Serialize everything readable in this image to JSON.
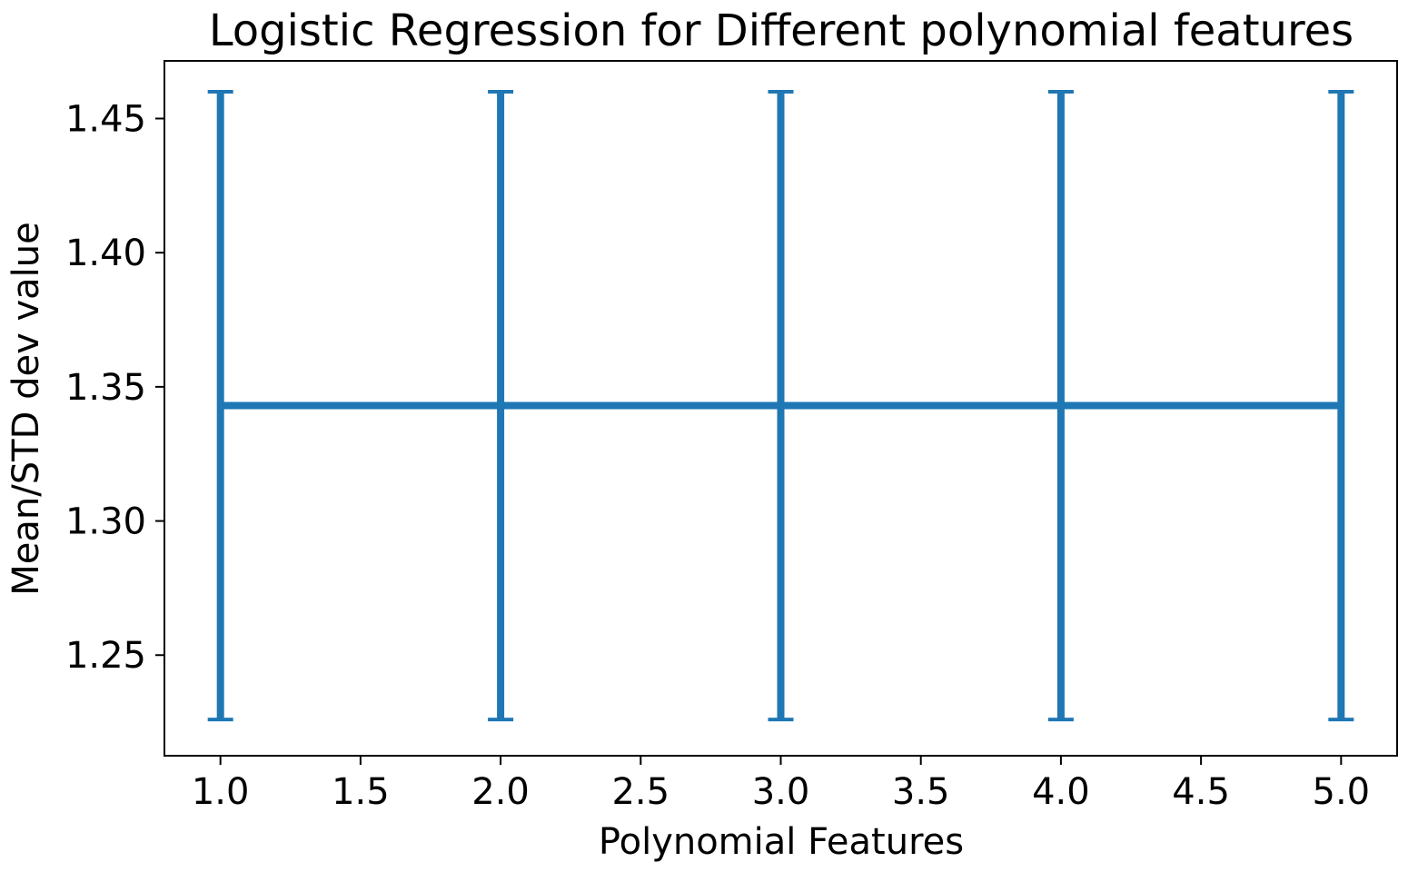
{
  "chart_data": {
    "type": "line",
    "title": "Logistic Regression for Different polynomial features",
    "xlabel": "Polynomial Features",
    "ylabel": "Mean/STD dev value",
    "x": [
      1,
      2,
      3,
      4,
      5
    ],
    "series": [
      {
        "values": [
          1.343,
          1.343,
          1.343,
          1.343,
          1.343
        ],
        "error": [
          0.117,
          0.117,
          0.117,
          0.117,
          0.117
        ],
        "color": "#1f77b4"
      }
    ],
    "xlim": [
      0.8,
      5.2
    ],
    "ylim": [
      1.2125,
      1.4715
    ],
    "xticks": [
      1.0,
      1.5,
      2.0,
      2.5,
      3.0,
      3.5,
      4.0,
      4.5,
      5.0
    ],
    "xtick_labels": [
      "1.0",
      "1.5",
      "2.0",
      "2.5",
      "3.0",
      "3.5",
      "4.0",
      "4.5",
      "5.0"
    ],
    "yticks": [
      1.25,
      1.3,
      1.35,
      1.4,
      1.45
    ],
    "ytick_labels": [
      "1.25",
      "1.30",
      "1.35",
      "1.40",
      "1.45"
    ],
    "grid": false,
    "legend": "none"
  }
}
